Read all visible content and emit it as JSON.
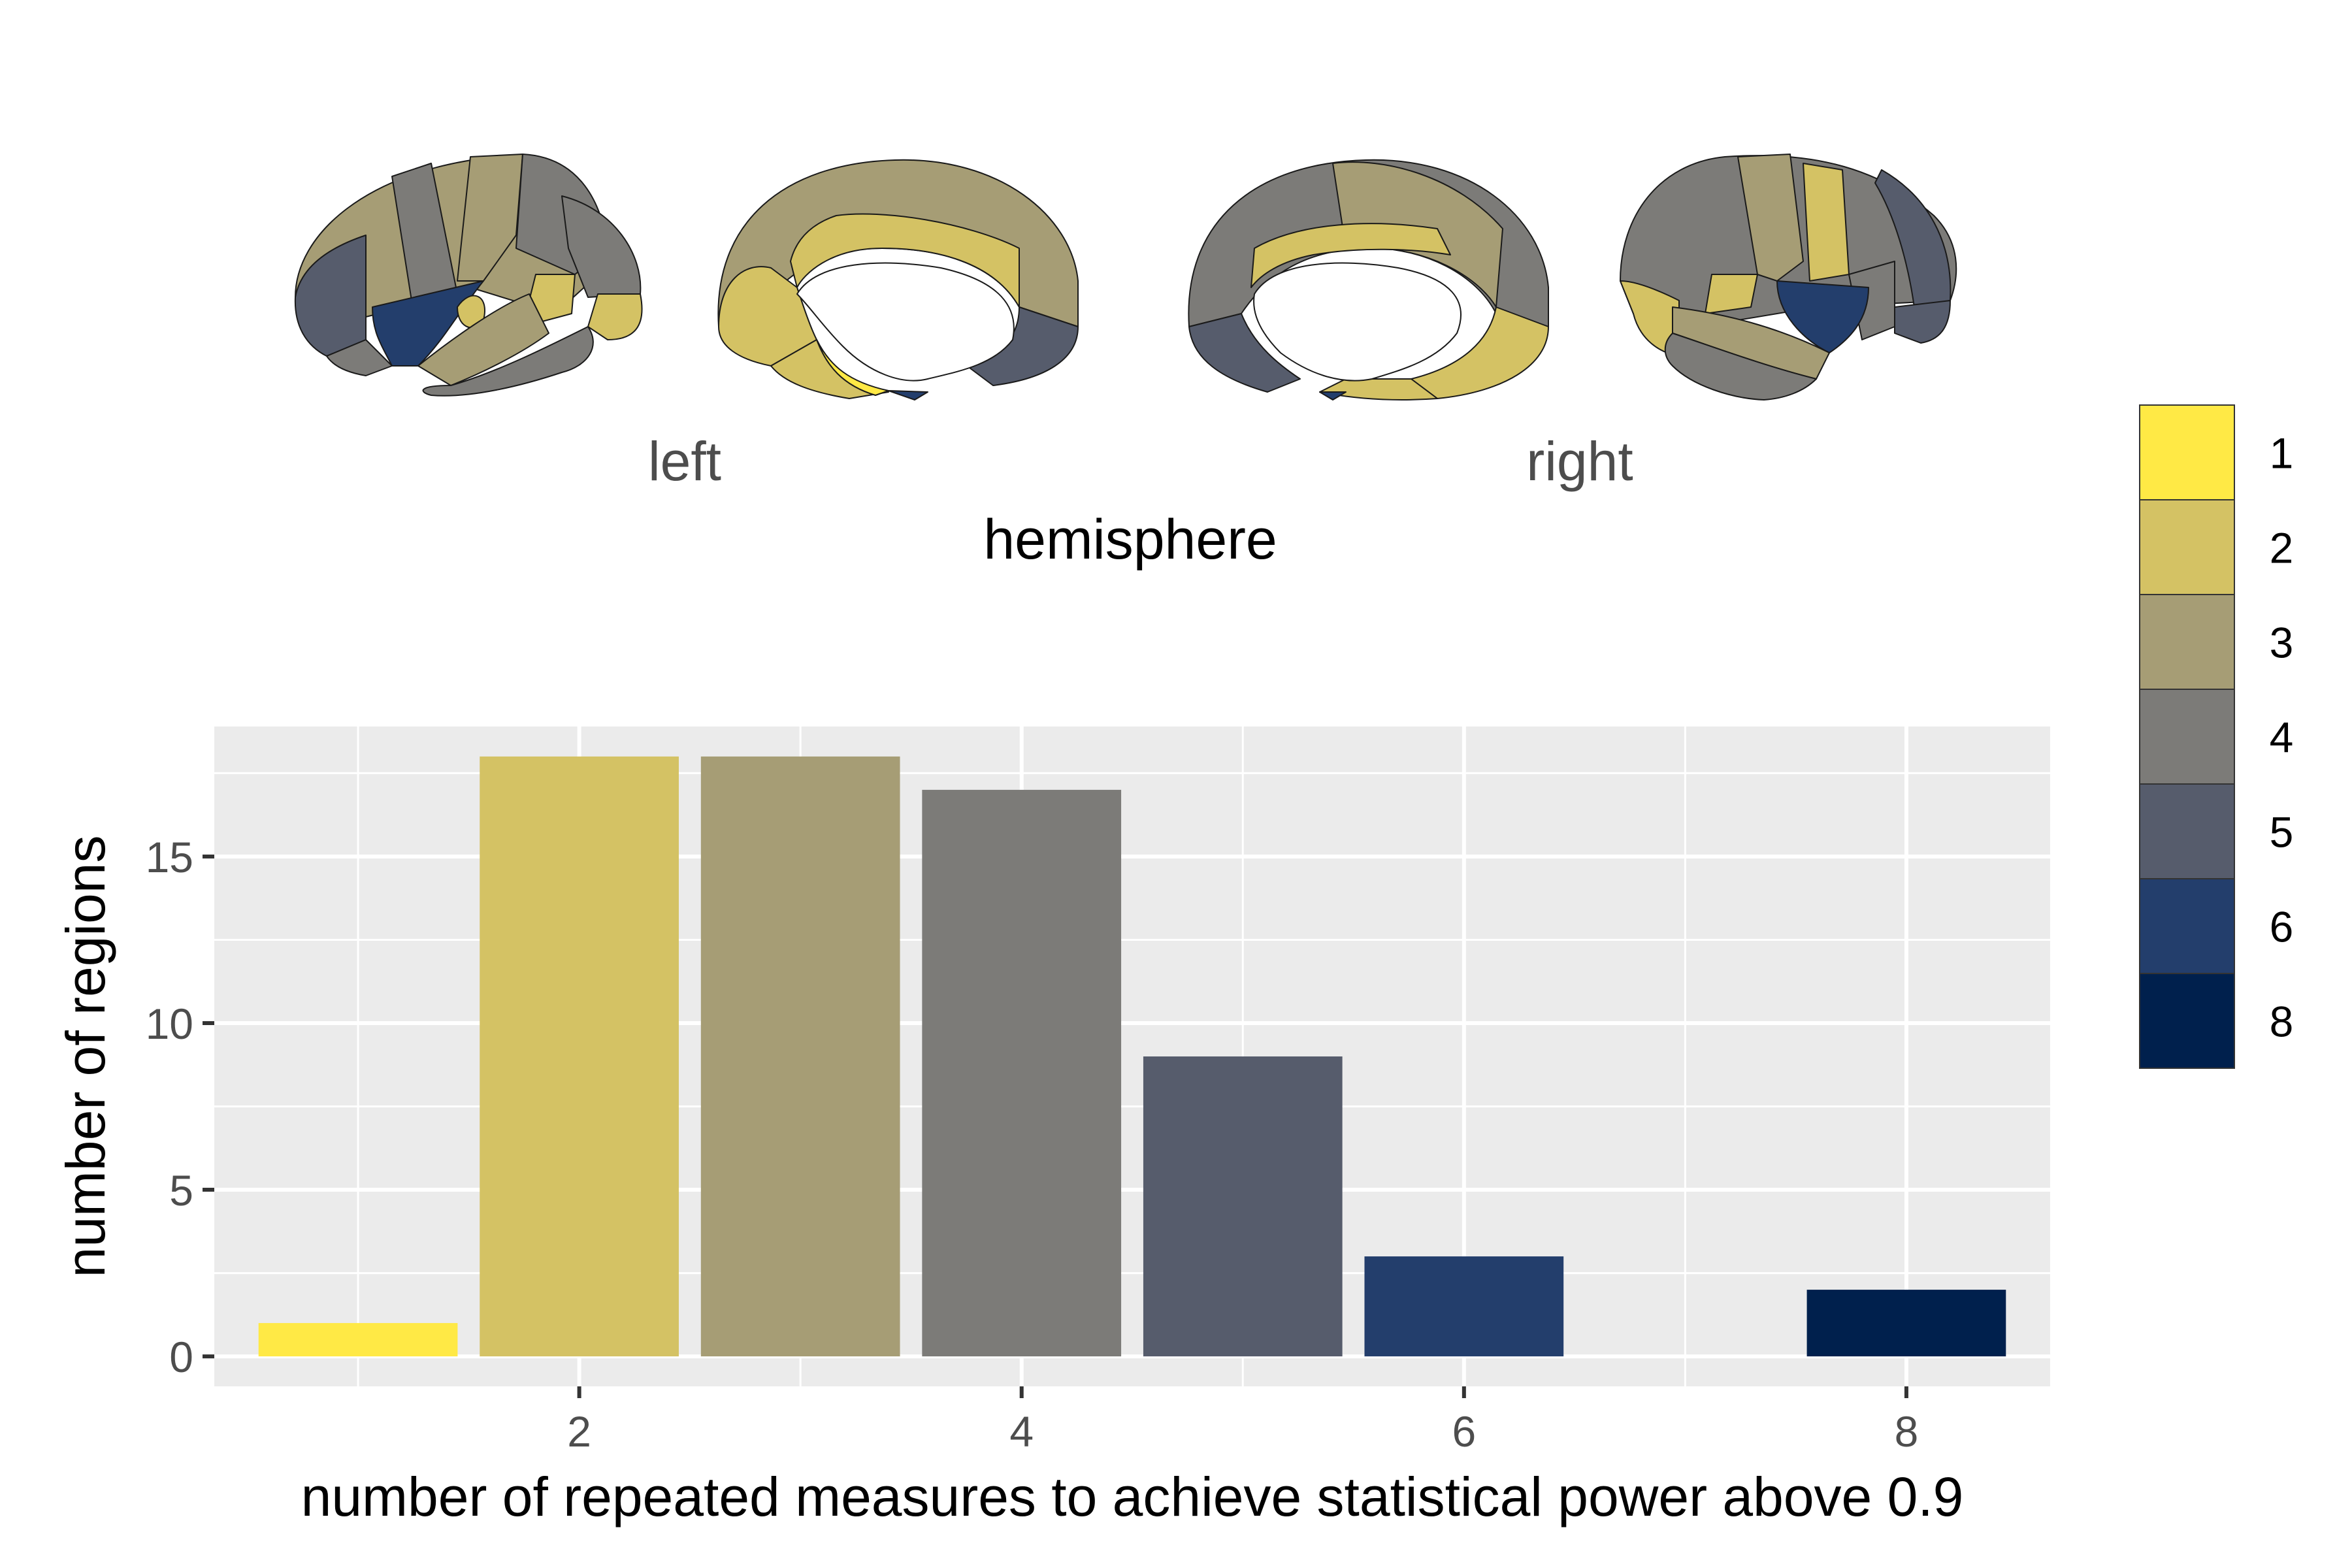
{
  "brain_panel": {
    "hemisphere_labels": [
      "left",
      "right"
    ],
    "axis_title": "hemisphere"
  },
  "legend": {
    "entries": [
      {
        "label": "1",
        "color": "#FFE945"
      },
      {
        "label": "2",
        "color": "#D4C264"
      },
      {
        "label": "3",
        "color": "#A69D75"
      },
      {
        "label": "4",
        "color": "#7C7B78"
      },
      {
        "label": "5",
        "color": "#565C6C"
      },
      {
        "label": "6",
        "color": "#233E6C"
      },
      {
        "label": "8",
        "color": "#00204D"
      }
    ]
  },
  "chart_data": {
    "type": "bar",
    "x": [
      1,
      2,
      3,
      4,
      5,
      6,
      8
    ],
    "values": [
      1,
      18,
      18,
      17,
      9,
      3,
      2
    ],
    "colors": [
      "#FFE945",
      "#D4C264",
      "#A69D75",
      "#7C7B78",
      "#565C6C",
      "#233E6C",
      "#00204D"
    ],
    "xlabel": "number of repeated measures to achieve statistical power above 0.9",
    "ylabel": "number of regions",
    "xticks": [
      2,
      4,
      6,
      8
    ],
    "yticks": [
      0,
      5,
      10,
      15
    ],
    "xlim": [
      0.35,
      8.65
    ],
    "ylim": [
      -0.9,
      18.9
    ],
    "grid": true,
    "legend_position": "right"
  }
}
